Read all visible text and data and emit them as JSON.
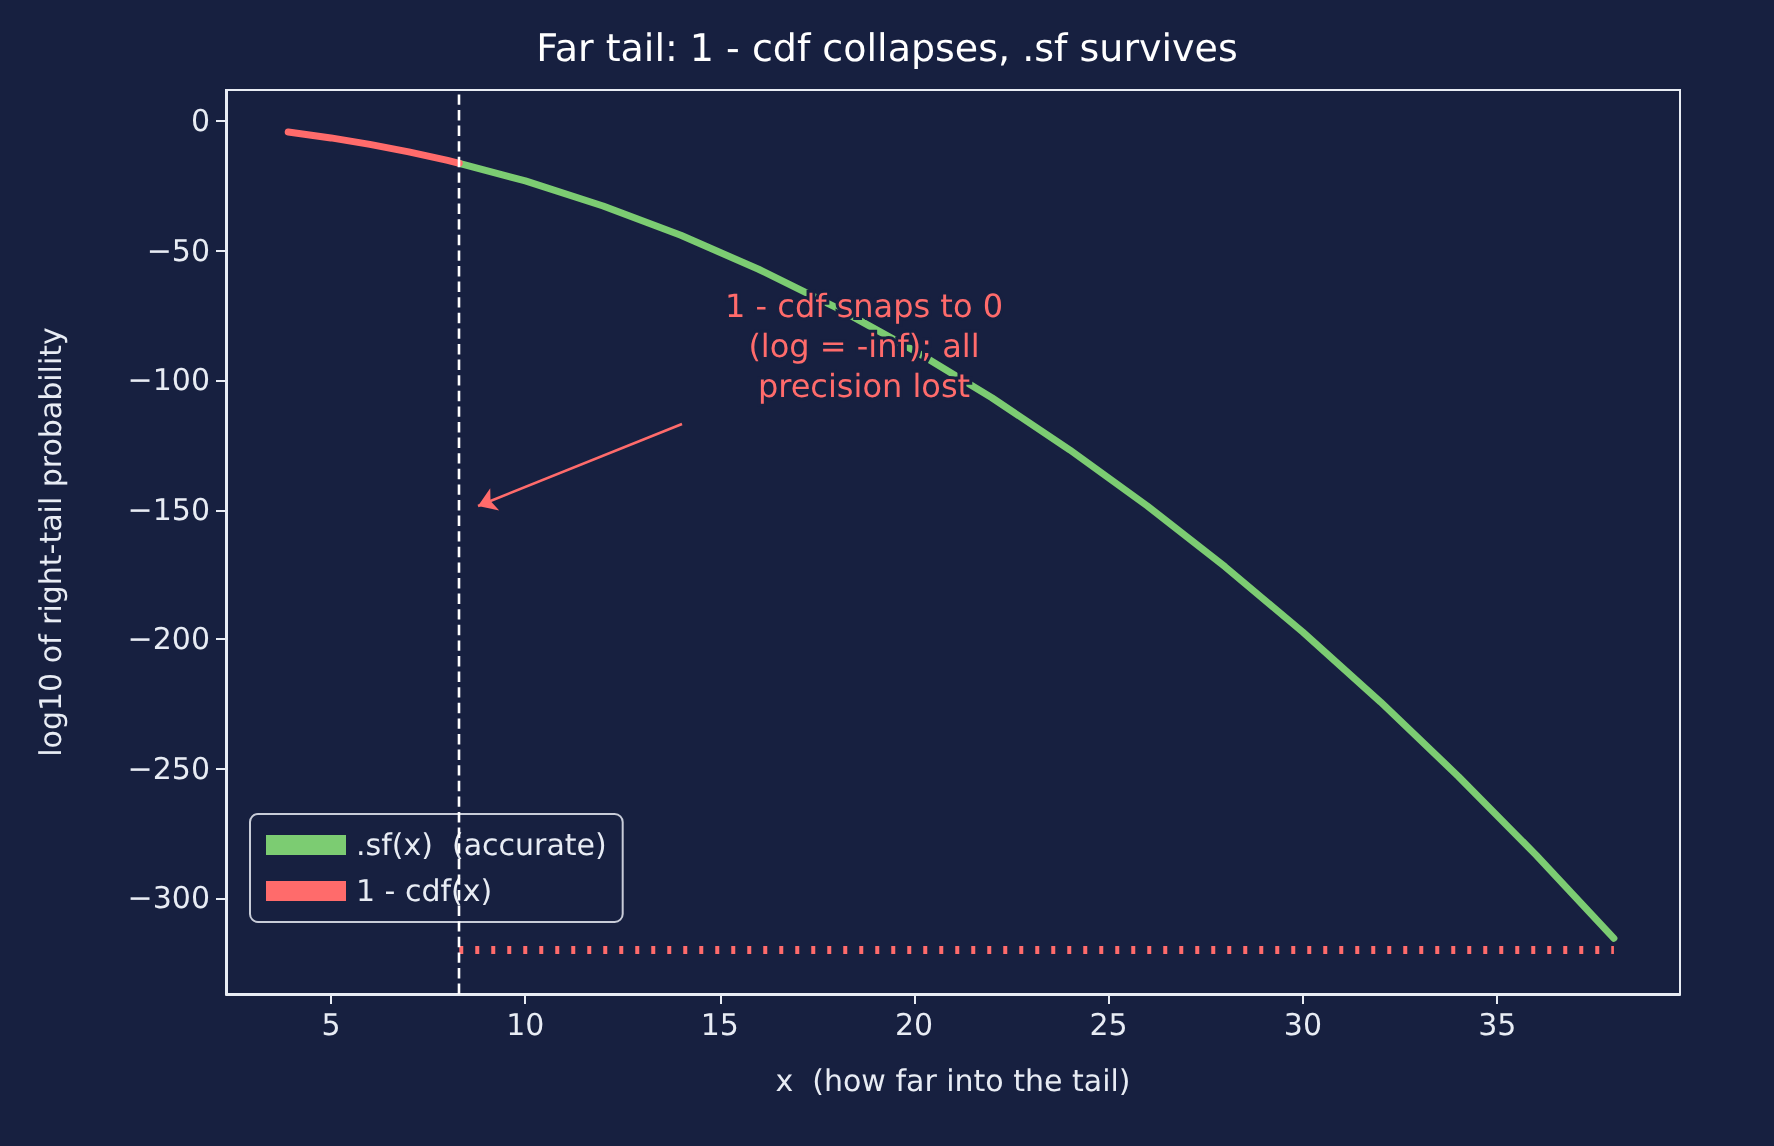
{
  "chart_data": {
    "type": "line",
    "title": "Far tail: 1 - cdf collapses, .sf survives",
    "xlabel": "x  (how far into the tail)",
    "ylabel": "log10 of right-tail probability",
    "xlim": [
      2.3,
      39.7
    ],
    "ylim": [
      -337,
      12
    ],
    "xticks": [
      5,
      10,
      15,
      20,
      25,
      30,
      35
    ],
    "yticks": [
      {
        "value": -300,
        "label": "−300"
      },
      {
        "value": -250,
        "label": "−250"
      },
      {
        "value": -200,
        "label": "−200"
      },
      {
        "value": -150,
        "label": "−150"
      },
      {
        "value": -100,
        "label": "−100"
      },
      {
        "value": -50,
        "label": "−50"
      },
      0
    ],
    "series": [
      {
        "name": ".sf(x)  (accurate)",
        "color": "#7ccc72",
        "line_style": "solid",
        "x": [
          8.3,
          10,
          12,
          14,
          16,
          18,
          20,
          22,
          24,
          26,
          28,
          30,
          32,
          34,
          36,
          38
        ],
        "values": [
          -16.3,
          -23.1,
          -32.8,
          -44.1,
          -57.2,
          -72,
          -88.6,
          -106.8,
          -126.9,
          -148.6,
          -172.1,
          -197.3,
          -224.3,
          -253,
          -283.4,
          -315.5
        ]
      },
      {
        "name": "1 - cdf(x)",
        "color": "#ff6b6b",
        "line_style": "solid",
        "x": [
          3.9,
          5,
          6,
          7,
          8,
          8.3
        ],
        "values": [
          -4.2,
          -6.5,
          -9,
          -11.9,
          -15.2,
          -16.3
        ]
      },
      {
        "color": "#ff6b6b",
        "line_style": "dotted",
        "x": [
          8.3,
          38
        ],
        "values": [
          -320,
          -320
        ]
      }
    ],
    "ref_lines": [
      {
        "axis": "x",
        "value": 8.3,
        "color": "#ffffff",
        "line_style": "dashed"
      }
    ],
    "annotations": [
      "1 - cdf snaps to 0\n(log = -inf); all\nprecision lost"
    ],
    "legend": "bottom left",
    "grid": false,
    "marker": "none"
  }
}
